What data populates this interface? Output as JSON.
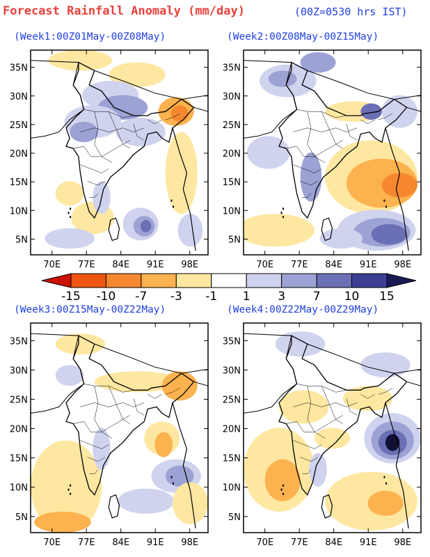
{
  "header": {
    "title": "Forecast Rainfall Anomaly (mm/day)",
    "time_note": "(00Z=0530 hrs IST)"
  },
  "panels": [
    {
      "title": "(Week1:00Z01May-00Z08May)"
    },
    {
      "title": "(Week2:00Z08May-00Z15May)"
    },
    {
      "title": "(Week3:00Z15May-00Z22May)"
    },
    {
      "title": "(Week4:00Z22May-00Z29May)"
    }
  ],
  "axes": {
    "lat_labels": [
      "35N",
      "30N",
      "25N",
      "20N",
      "15N",
      "10N",
      "5N"
    ],
    "lon_labels": [
      "70E",
      "77E",
      "84E",
      "91E",
      "98E"
    ]
  },
  "colorbar": {
    "labels": [
      "-15",
      "-10",
      "-7",
      "-3",
      "-1",
      "1",
      "3",
      "7",
      "10",
      "15"
    ],
    "colors": [
      "#cc1100",
      "#ee5511",
      "#f5882e",
      "#fcb24e",
      "#fee7a1",
      "#ffffff",
      "#cfd3ee",
      "#9da2d4",
      "#6b6fb5",
      "#3d3f95",
      "#1a1a55"
    ]
  },
  "palette": {
    "dry_light": "#fee7a1",
    "dry_mid": "#fcb24e",
    "dry_strong": "#f5882e",
    "dry_extreme": "#ee5511",
    "wet_light": "#cfd3ee",
    "wet_mid": "#9da2d4",
    "wet_strong": "#6b6fb5",
    "wet_extreme": "#3d3f95",
    "wet_max": "#111133"
  }
}
